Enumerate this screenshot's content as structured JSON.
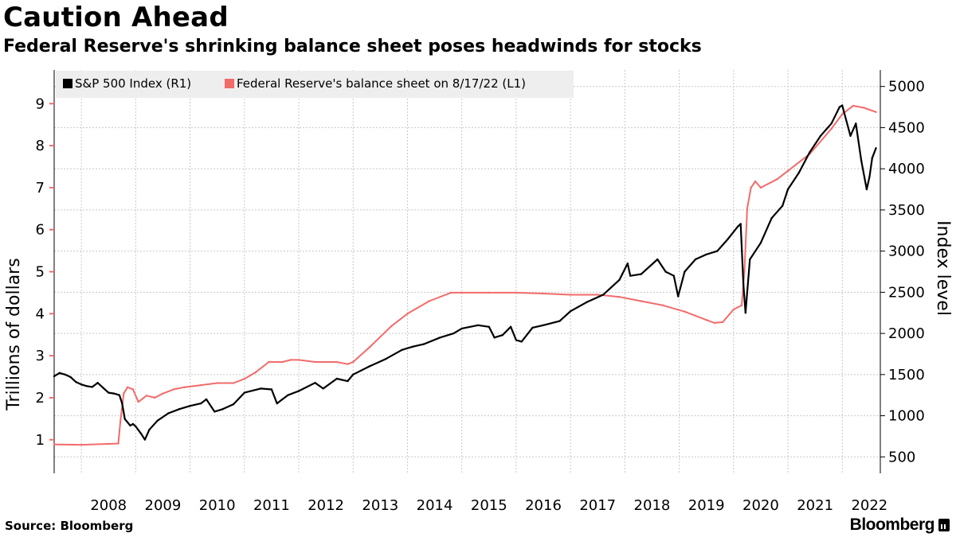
{
  "header": {
    "title": "Caution Ahead",
    "subtitle": "Federal Reserve's shrinking balance sheet poses headwinds for stocks"
  },
  "footer": {
    "source": "Source: Bloomberg",
    "brand": "Bloomberg"
  },
  "chart_data": {
    "type": "line",
    "title": "Caution Ahead",
    "subtitle": "Federal Reserve's shrinking balance sheet poses headwinds for stocks",
    "ylabel_left": "Trillions of dollars",
    "ylabel_right": "Index level",
    "y_left_ticks": [
      "1",
      "2",
      "3",
      "4",
      "5",
      "6",
      "7",
      "8",
      "9"
    ],
    "y_right_ticks": [
      "500",
      "1000",
      "1500",
      "2000",
      "2500",
      "3000",
      "3500",
      "4000",
      "4500",
      "5000"
    ],
    "x_ticks": [
      "2008",
      "2009",
      "2010",
      "2011",
      "2012",
      "2013",
      "2014",
      "2015",
      "2016",
      "2017",
      "2018",
      "2019",
      "2020",
      "2021",
      "2022"
    ],
    "ylim_left": [
      0.2,
      9.8
    ],
    "ylim_right": [
      300,
      5200
    ],
    "xlim": [
      2007.5,
      2022.7
    ],
    "grid": true,
    "legend_position": "top-left",
    "colors": {
      "sp500": "#000000",
      "fed": "#f26b6b",
      "grid": "#c8c8c8",
      "legend_bg": "#eeeeee"
    },
    "series": [
      {
        "name": "S&P 500 Index (R1)",
        "axis": "right",
        "color": "#000000",
        "x": [
          2007.5,
          2007.6,
          2007.7,
          2007.8,
          2007.9,
          2008.0,
          2008.1,
          2008.2,
          2008.3,
          2008.4,
          2008.5,
          2008.6,
          2008.7,
          2008.75,
          2008.8,
          2008.85,
          2008.9,
          2008.95,
          2009.0,
          2009.1,
          2009.17,
          2009.25,
          2009.4,
          2009.6,
          2009.8,
          2010.0,
          2010.2,
          2010.3,
          2010.45,
          2010.6,
          2010.8,
          2011.0,
          2011.3,
          2011.5,
          2011.6,
          2011.7,
          2011.8,
          2012.0,
          2012.3,
          2012.45,
          2012.7,
          2012.9,
          2013.0,
          2013.3,
          2013.6,
          2013.9,
          2014.1,
          2014.3,
          2014.6,
          2014.85,
          2015.0,
          2015.3,
          2015.5,
          2015.6,
          2015.75,
          2015.9,
          2016.0,
          2016.1,
          2016.3,
          2016.5,
          2016.8,
          2017.0,
          2017.3,
          2017.6,
          2017.9,
          2018.05,
          2018.1,
          2018.3,
          2018.6,
          2018.75,
          2018.9,
          2018.98,
          2019.1,
          2019.3,
          2019.5,
          2019.7,
          2019.9,
          2020.08,
          2020.13,
          2020.18,
          2020.22,
          2020.3,
          2020.5,
          2020.7,
          2020.9,
          2021.0,
          2021.2,
          2021.4,
          2021.6,
          2021.8,
          2021.95,
          2022.0,
          2022.15,
          2022.25,
          2022.35,
          2022.45,
          2022.5,
          2022.55,
          2022.62
        ],
        "values": [
          1480,
          1520,
          1500,
          1470,
          1410,
          1380,
          1360,
          1350,
          1400,
          1340,
          1280,
          1270,
          1250,
          1150,
          960,
          920,
          880,
          900,
          870,
          780,
          710,
          830,
          940,
          1030,
          1080,
          1120,
          1150,
          1200,
          1050,
          1080,
          1140,
          1280,
          1330,
          1320,
          1150,
          1200,
          1250,
          1300,
          1400,
          1330,
          1450,
          1420,
          1500,
          1600,
          1690,
          1800,
          1840,
          1870,
          1950,
          2000,
          2060,
          2100,
          2080,
          1950,
          1980,
          2080,
          1920,
          1900,
          2070,
          2100,
          2150,
          2270,
          2380,
          2470,
          2650,
          2850,
          2700,
          2720,
          2900,
          2750,
          2700,
          2450,
          2750,
          2900,
          2960,
          3000,
          3150,
          3300,
          3330,
          2600,
          2250,
          2900,
          3100,
          3400,
          3550,
          3750,
          3950,
          4200,
          4400,
          4550,
          4750,
          4770,
          4400,
          4550,
          4100,
          3750,
          3900,
          4130,
          4250
        ]
      },
      {
        "name": "Federal Reserve's balance sheet on 8/17/22 (L1)",
        "axis": "left",
        "color": "#f26b6b",
        "x": [
          2007.5,
          2008.0,
          2008.5,
          2008.68,
          2008.72,
          2008.78,
          2008.85,
          2008.95,
          2009.05,
          2009.2,
          2009.35,
          2009.5,
          2009.7,
          2009.9,
          2010.2,
          2010.5,
          2010.8,
          2011.0,
          2011.2,
          2011.45,
          2011.7,
          2011.85,
          2012.0,
          2012.3,
          2012.7,
          2012.9,
          2013.0,
          2013.3,
          2013.7,
          2014.0,
          2014.4,
          2014.8,
          2015.0,
          2015.5,
          2016.0,
          2016.5,
          2017.0,
          2017.5,
          2017.9,
          2018.3,
          2018.7,
          2019.1,
          2019.5,
          2019.65,
          2019.8,
          2020.0,
          2020.15,
          2020.2,
          2020.25,
          2020.32,
          2020.4,
          2020.5,
          2020.8,
          2021.0,
          2021.4,
          2021.8,
          2022.0,
          2022.2,
          2022.4,
          2022.62
        ],
        "values": [
          0.89,
          0.88,
          0.9,
          0.91,
          1.45,
          2.1,
          2.25,
          2.2,
          1.9,
          2.05,
          2.0,
          2.1,
          2.2,
          2.25,
          2.3,
          2.35,
          2.35,
          2.45,
          2.6,
          2.85,
          2.85,
          2.9,
          2.9,
          2.85,
          2.85,
          2.8,
          2.85,
          3.2,
          3.7,
          4.0,
          4.3,
          4.5,
          4.5,
          4.5,
          4.5,
          4.48,
          4.45,
          4.45,
          4.4,
          4.3,
          4.2,
          4.05,
          3.85,
          3.78,
          3.8,
          4.1,
          4.2,
          5.0,
          6.5,
          7.0,
          7.15,
          7.0,
          7.2,
          7.4,
          7.8,
          8.4,
          8.75,
          8.95,
          8.9,
          8.8
        ]
      }
    ]
  }
}
